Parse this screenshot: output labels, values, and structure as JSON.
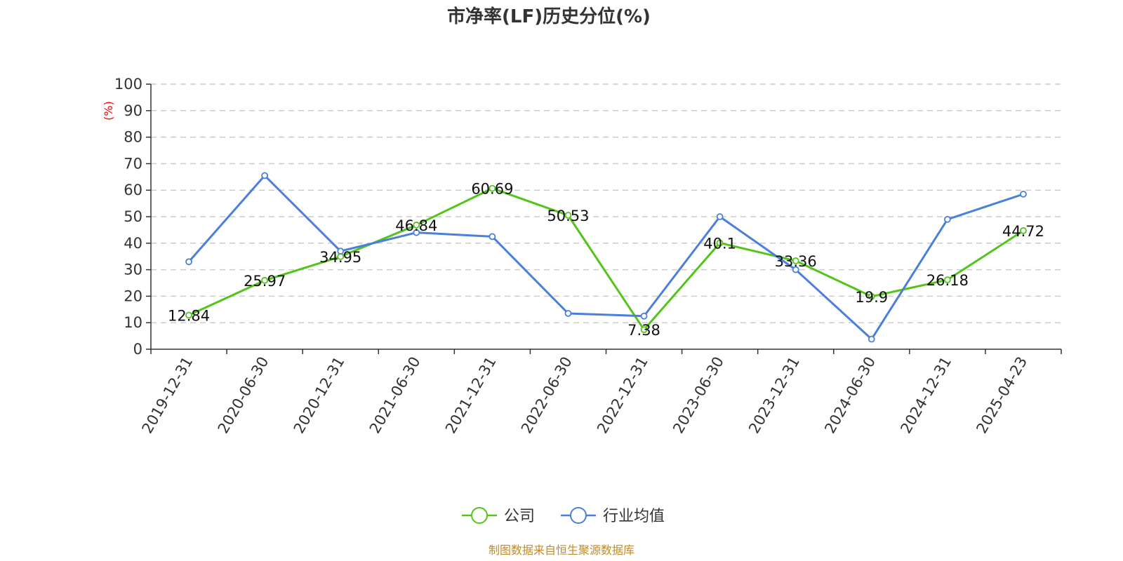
{
  "chart_data": {
    "type": "line",
    "title": "市净率(LF)历史分位(%)",
    "ylabel": "(%)",
    "xlabel": "",
    "ylim": [
      0,
      100
    ],
    "yticks": [
      0,
      10,
      20,
      30,
      40,
      50,
      60,
      70,
      80,
      90,
      100
    ],
    "grid": true,
    "legend_position": "bottom-center",
    "categories": [
      "2019-12-31",
      "2020-06-30",
      "2020-12-31",
      "2021-06-30",
      "2021-12-31",
      "2022-06-30",
      "2022-12-31",
      "2023-06-30",
      "2023-12-31",
      "2024-06-30",
      "2024-12-31",
      "2025-04-23"
    ],
    "series": [
      {
        "name": "公司",
        "color": "#52c41a",
        "values": [
          12.84,
          25.97,
          34.95,
          46.84,
          60.69,
          50.53,
          7.38,
          40.1,
          33.36,
          19.9,
          26.18,
          44.72
        ],
        "labels": [
          "12.84",
          "25.97",
          "34.95",
          "46.84",
          "60.69",
          "50.53",
          "7.38",
          "40.1",
          "33.36",
          "19.9",
          "26.18",
          "44.72"
        ]
      },
      {
        "name": "行业均值",
        "color": "#4a7fdb",
        "values": [
          33.0,
          65.5,
          37.0,
          44.0,
          42.5,
          13.5,
          12.5,
          50.0,
          30.0,
          3.8,
          49.0,
          58.5
        ]
      }
    ]
  },
  "source_text": "制图数据来自恒生聚源数据库"
}
